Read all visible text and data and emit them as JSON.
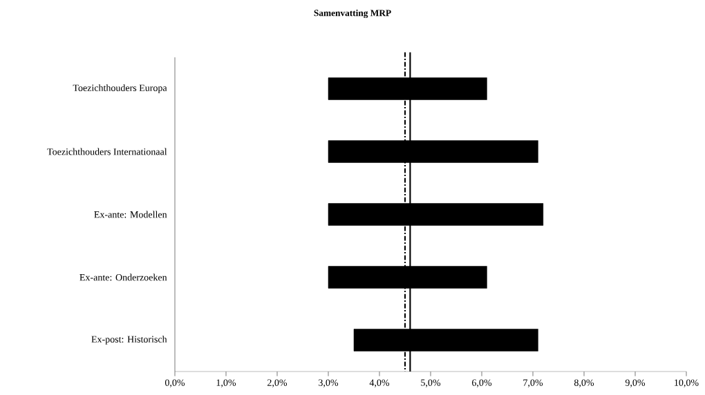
{
  "chart_data": {
    "type": "bar",
    "title": "Samenvatting MRP",
    "orientation": "horizontal",
    "categories": [
      "Toezichthouders Europa",
      "Toezichthouders Internationaal",
      "Ex-ante: Modellen",
      "Ex-ante: Onderzoeken",
      "Ex-post: Historisch"
    ],
    "base": [
      3.0,
      3.0,
      3.0,
      3.0,
      3.5
    ],
    "values": [
      3.1,
      4.1,
      4.2,
      3.1,
      3.6
    ],
    "color": "#000000",
    "xlim": [
      0,
      10
    ],
    "xticks": [
      {
        "value": 0,
        "label": "0,0%"
      },
      {
        "value": 1,
        "label": "1,0%"
      },
      {
        "value": 2,
        "label": "2,0%"
      },
      {
        "value": 3,
        "label": "3,0%"
      },
      {
        "value": 4,
        "label": "4,0%"
      },
      {
        "value": 5,
        "label": "5,0%"
      },
      {
        "value": 6,
        "label": "6,0%"
      },
      {
        "value": 7,
        "label": "7,0%"
      },
      {
        "value": 8,
        "label": "8,0%"
      },
      {
        "value": 9,
        "label": "9,0%"
      },
      {
        "value": 10,
        "label": "10,0%"
      }
    ],
    "ref_lines": [
      {
        "axis": "x",
        "value": 4.5,
        "color": "#000000",
        "line_style": "dashdot"
      },
      {
        "axis": "x",
        "value": 4.6,
        "color": "#000000",
        "line_style": "solid"
      }
    ]
  }
}
